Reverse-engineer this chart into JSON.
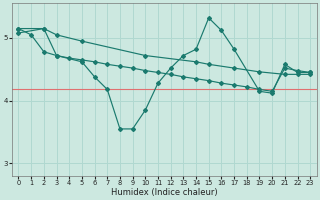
{
  "xlabel": "Humidex (Indice chaleur)",
  "xlim": [
    -0.5,
    23.5
  ],
  "ylim": [
    2.8,
    5.55
  ],
  "yticks": [
    3,
    4,
    5
  ],
  "xticks": [
    0,
    1,
    2,
    3,
    4,
    5,
    6,
    7,
    8,
    9,
    10,
    11,
    12,
    13,
    14,
    15,
    16,
    17,
    18,
    19,
    20,
    21,
    22,
    23
  ],
  "bg_color": "#cce8e0",
  "grid_color": "#b0d8d0",
  "line_color": "#1a7a6e",
  "hline_color": "#e07070",
  "hline_y": 4.18,
  "lines": [
    {
      "x": [
        0,
        2,
        3,
        5,
        10,
        14,
        15,
        17,
        19,
        21,
        22,
        23
      ],
      "y": [
        5.15,
        5.15,
        5.05,
        4.95,
        4.72,
        4.62,
        4.58,
        4.52,
        4.46,
        4.42,
        4.42,
        4.42
      ]
    },
    {
      "x": [
        0,
        2,
        3,
        5,
        6,
        7,
        8,
        9,
        10,
        11,
        12,
        13,
        14,
        15,
        16,
        17,
        19,
        20,
        21,
        22,
        23
      ],
      "y": [
        5.08,
        5.15,
        4.72,
        4.62,
        4.38,
        4.18,
        3.55,
        3.55,
        3.85,
        4.28,
        4.52,
        4.72,
        4.82,
        5.32,
        5.12,
        4.82,
        4.15,
        4.12,
        4.58,
        4.45,
        4.45
      ]
    },
    {
      "x": [
        0,
        1,
        2,
        3,
        4,
        5,
        6,
        7,
        8,
        9,
        10,
        11,
        12,
        13,
        14,
        15,
        16,
        17,
        18,
        19,
        20,
        21,
        22,
        23
      ],
      "y": [
        5.15,
        5.05,
        4.78,
        4.72,
        4.68,
        4.65,
        4.62,
        4.58,
        4.55,
        4.52,
        4.48,
        4.45,
        4.42,
        4.38,
        4.35,
        4.32,
        4.28,
        4.25,
        4.22,
        4.18,
        4.15,
        4.52,
        4.48,
        4.45
      ]
    }
  ]
}
